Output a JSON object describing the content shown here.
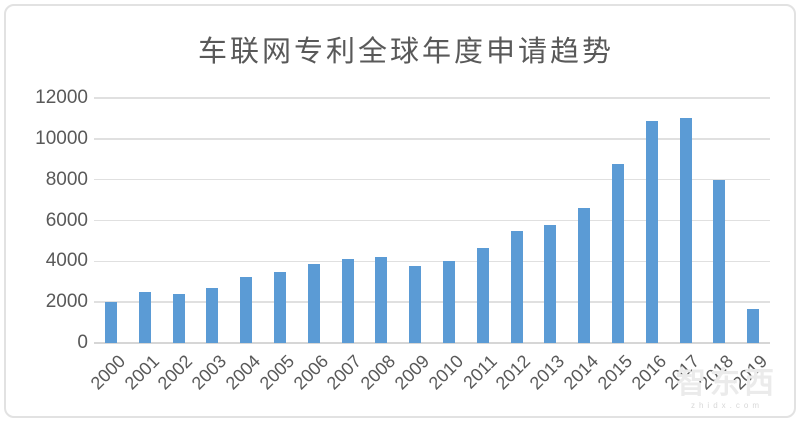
{
  "page": {
    "background": "#ffffff"
  },
  "chart_data": {
    "type": "bar",
    "title": "车联网专利全球年度申请趋势",
    "categories": [
      "2000",
      "2001",
      "2002",
      "2003",
      "2004",
      "2005",
      "2006",
      "2007",
      "2008",
      "2009",
      "2010",
      "2011",
      "2012",
      "2013",
      "2014",
      "2015",
      "2016",
      "2017",
      "2018",
      "2019"
    ],
    "values": [
      2000,
      2500,
      2400,
      2700,
      3250,
      3500,
      3850,
      4100,
      4200,
      3750,
      4000,
      4650,
      5500,
      5800,
      6600,
      8750,
      10850,
      11000,
      8000,
      1650
    ],
    "xlabel": "",
    "ylabel": "",
    "ylim": [
      0,
      12000
    ],
    "yticks": [
      0,
      2000,
      4000,
      6000,
      8000,
      10000,
      12000
    ],
    "grid": true,
    "legend_position": "none",
    "bar_color": "#5B9BD5",
    "gridline_color": "#E0E0E0",
    "label_color": "#595959",
    "title_color": "#595959"
  },
  "watermark": {
    "logo_text": "智东西",
    "domain_text": "zhidx.com"
  }
}
